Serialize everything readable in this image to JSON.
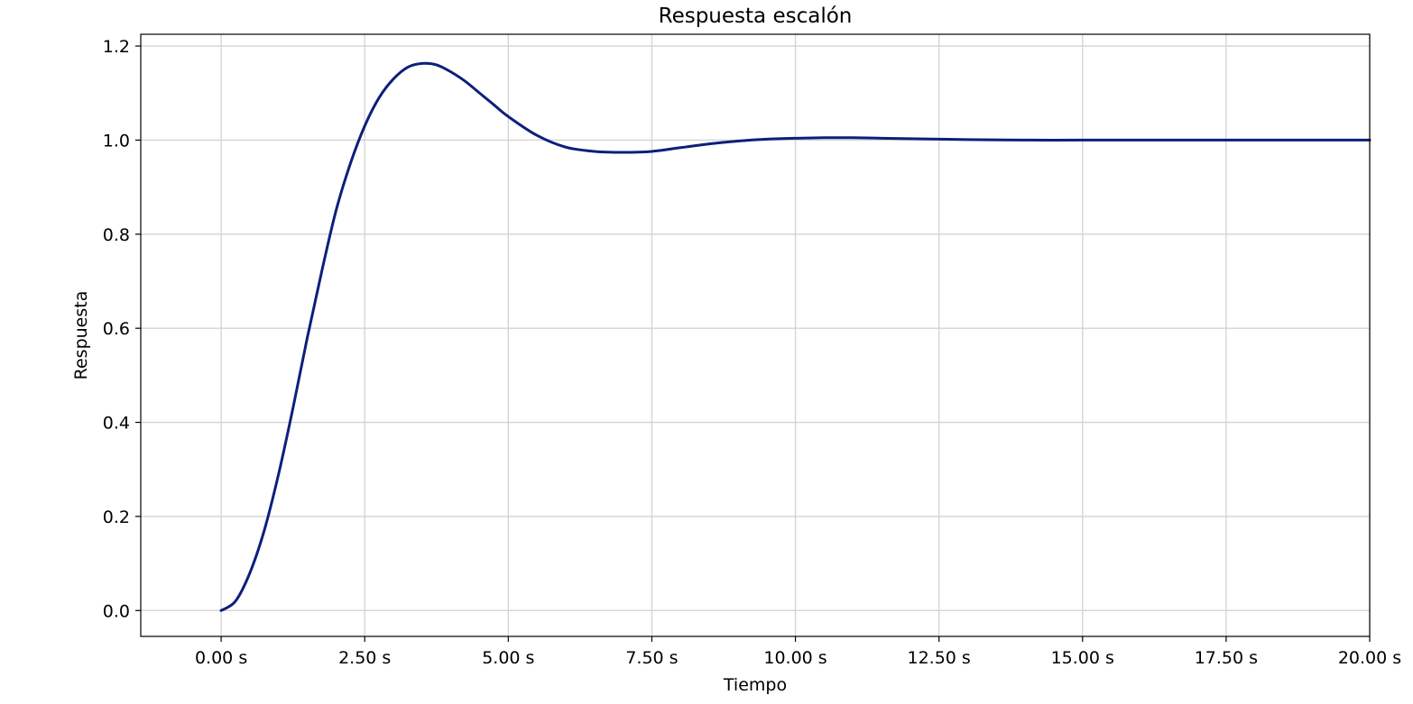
{
  "chart_data": {
    "type": "line",
    "title": "Respuesta escalón",
    "xlabel": "Tiempo",
    "ylabel": "Respuesta",
    "xlim": [
      -1.4,
      20.0
    ],
    "ylim": [
      -0.055,
      1.225
    ],
    "grid": true,
    "x_ticks": [
      0,
      2.5,
      5,
      7.5,
      10,
      12.5,
      15,
      17.5,
      20
    ],
    "x_tick_labels": [
      "0.00 s",
      "2.50 s",
      "5.00 s",
      "7.50 s",
      "10.00 s",
      "12.50 s",
      "15.00 s",
      "17.50 s",
      "20.00 s"
    ],
    "y_ticks": [
      0.0,
      0.2,
      0.4,
      0.6,
      0.8,
      1.0,
      1.2
    ],
    "y_tick_labels": [
      "0.0",
      "0.2",
      "0.4",
      "0.6",
      "0.8",
      "1.0",
      "1.2"
    ],
    "colors": {
      "line": "#0d1f7a",
      "grid": "#d3d3d3"
    },
    "series": [
      {
        "x": [
          0,
          0.25,
          0.5,
          0.75,
          1.0,
          1.25,
          1.5,
          1.75,
          2.0,
          2.25,
          2.5,
          2.75,
          3.0,
          3.25,
          3.5,
          3.75,
          4.0,
          4.25,
          4.5,
          4.75,
          5.0,
          5.5,
          6.0,
          6.5,
          7.0,
          7.5,
          8.0,
          8.5,
          9.0,
          9.5,
          10.0,
          10.5,
          11.0,
          11.5,
          12.0,
          12.5,
          13.0,
          14.0,
          15.0,
          16.0,
          17.0,
          18.0,
          19.0,
          20.0
        ],
        "y": [
          0.0,
          0.02,
          0.08,
          0.17,
          0.29,
          0.43,
          0.58,
          0.72,
          0.85,
          0.95,
          1.03,
          1.09,
          1.13,
          1.155,
          1.163,
          1.16,
          1.145,
          1.125,
          1.1,
          1.075,
          1.05,
          1.01,
          0.985,
          0.976,
          0.974,
          0.976,
          0.984,
          0.992,
          0.998,
          1.002,
          1.004,
          1.005,
          1.005,
          1.004,
          1.003,
          1.002,
          1.001,
          1.0,
          1.0,
          1.0,
          1.0,
          1.0,
          1.0,
          1.0
        ]
      }
    ]
  }
}
